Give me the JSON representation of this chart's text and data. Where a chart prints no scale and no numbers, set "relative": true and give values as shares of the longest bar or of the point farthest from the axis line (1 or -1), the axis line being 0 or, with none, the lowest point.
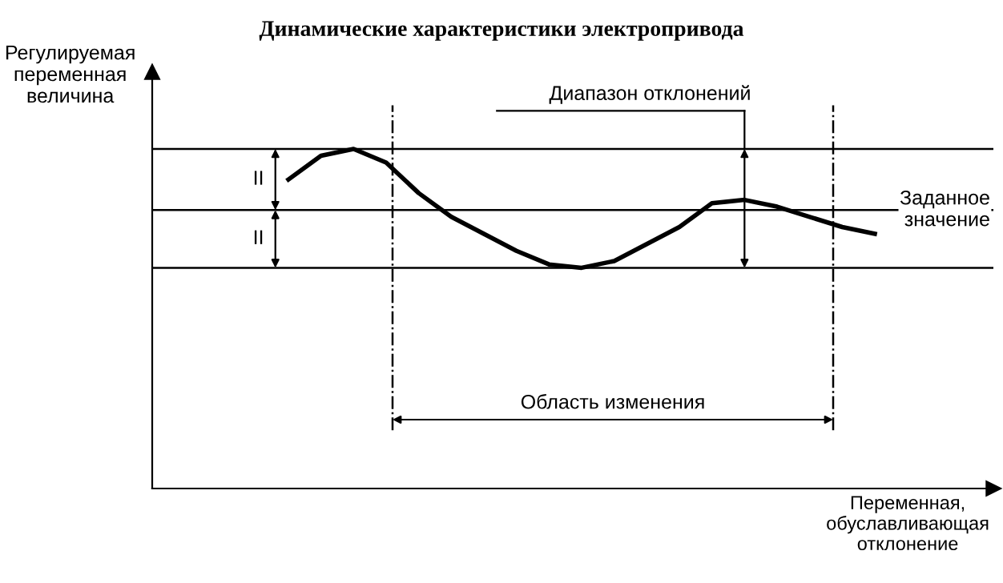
{
  "chart_data": {
    "type": "line",
    "title": "Динамические характеристики электропривода",
    "xlabel": "Переменная,\nобуславливающая\nотклонение",
    "relative": true,
    "categories": [
      null,
      null,
      null,
      null,
      null,
      null,
      null,
      null,
      null,
      null,
      null,
      null,
      null,
      null,
      null,
      null,
      null,
      null,
      null
    ],
    "series": [
      {
        "color": "#000000",
        "values": [
          0.91,
          0.98,
          1.0,
          0.96,
          0.87,
          0.8,
          0.75,
          0.7,
          0.66,
          0.65,
          0.67,
          0.72,
          0.77,
          0.84,
          0.85,
          0.83,
          0.8,
          0.77,
          0.75
        ]
      }
    ],
    "ref_lines": [
      {
        "axis": "y",
        "value": 1.0,
        "color": "#000000"
      },
      {
        "axis": "y",
        "value": 0.82,
        "label": "Заданное\nзначение",
        "color": "#000000"
      },
      {
        "axis": "y",
        "value": 0.65,
        "color": "#000000"
      }
    ],
    "annotations": [
      "II",
      "II",
      "Диапазон отклонений",
      "Область изменения",
      "Регулируемая\nпеременная\nвеличина"
    ],
    "marker": "none",
    "line_style": "solid",
    "grid": false,
    "legend": false
  }
}
